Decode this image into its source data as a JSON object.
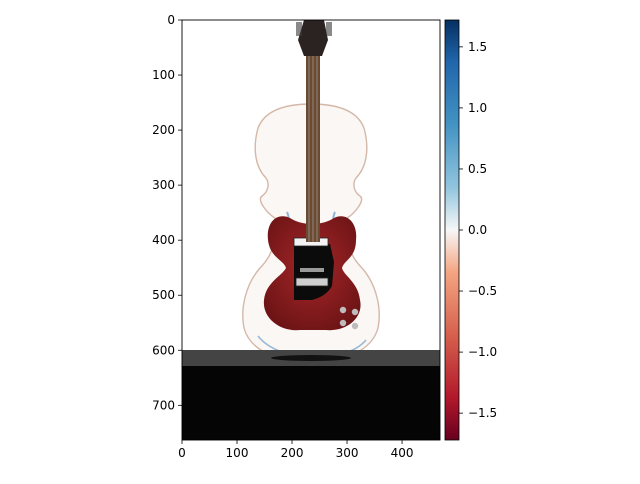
{
  "chart_data": {
    "type": "heatmap",
    "title": "",
    "xlabel": "",
    "ylabel": "",
    "image_width": 469,
    "image_height": 763,
    "xlim": [
      0,
      469
    ],
    "ylim": [
      763,
      0
    ],
    "x_ticks": [
      0,
      100,
      200,
      300,
      400
    ],
    "y_ticks": [
      0,
      100,
      200,
      300,
      400,
      500,
      600,
      700
    ],
    "colorbar": {
      "colormap": "RdBu",
      "range": [
        -1.72,
        1.72
      ],
      "ticks": [
        1.5,
        1.0,
        0.5,
        0.0,
        -0.5,
        -1.0,
        -1.5
      ],
      "tick_labels": [
        "1.5",
        "1.0",
        "0.5",
        "0.0",
        "−0.5",
        "−1.0",
        "−1.5"
      ]
    },
    "image_content": "violin overlaid with a red SG-style electric guitar body, dark neck and headstock; black table band at the bottom",
    "colors": {
      "guitar_red": "#8f1d1f",
      "dark_red": "#5e1012",
      "black": "#050505",
      "white": "#ffffff"
    },
    "grid": false
  }
}
